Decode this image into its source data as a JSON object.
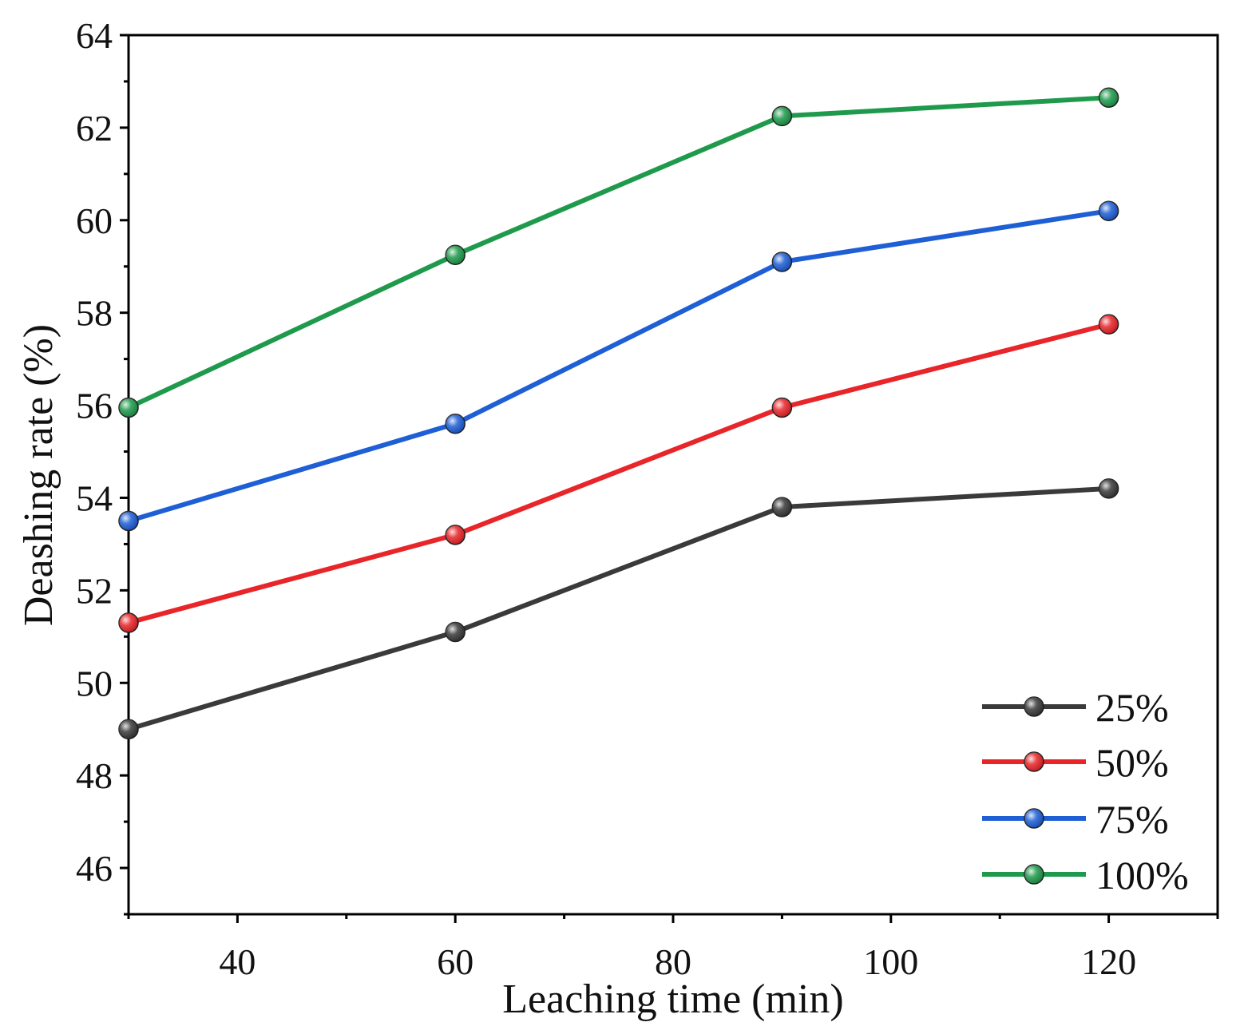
{
  "chart_data": {
    "type": "line",
    "title": "",
    "xlabel": "Leaching time (min)",
    "ylabel": "Deashing rate (%)",
    "xlim": [
      30,
      130
    ],
    "ylim": [
      45,
      64
    ],
    "xticks": [
      40,
      60,
      80,
      100,
      120
    ],
    "yticks": [
      46,
      48,
      50,
      52,
      54,
      56,
      58,
      60,
      62,
      64
    ],
    "grid": false,
    "legend_position": "bottom-right",
    "x": [
      30,
      60,
      90,
      120
    ],
    "series": [
      {
        "name": "25%",
        "color": "#3a3a3a",
        "values": [
          49.0,
          51.1,
          53.8,
          54.2
        ]
      },
      {
        "name": "50%",
        "color": "#e8262a",
        "values": [
          51.3,
          53.2,
          55.95,
          57.75
        ]
      },
      {
        "name": "75%",
        "color": "#1f5fd6",
        "values": [
          53.5,
          55.6,
          59.1,
          60.2
        ]
      },
      {
        "name": "100%",
        "color": "#1f9a4c",
        "values": [
          55.95,
          59.25,
          62.25,
          62.65
        ]
      }
    ]
  }
}
